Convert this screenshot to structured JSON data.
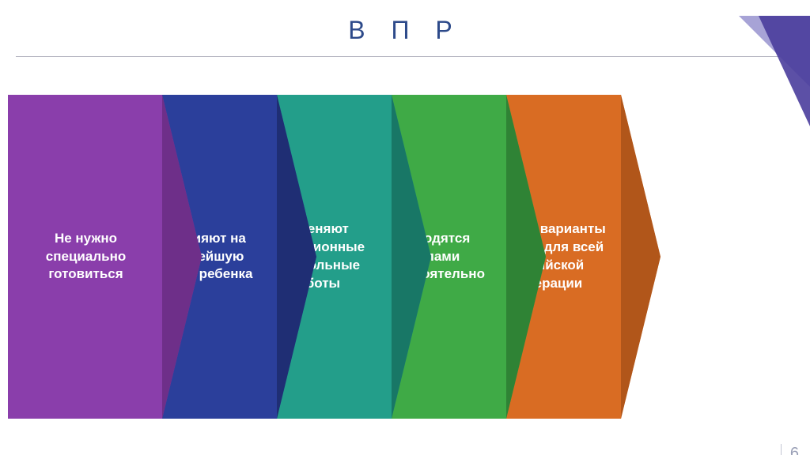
{
  "title": "В П Р",
  "title_color": "#2d4a8a",
  "title_fontsize": 32,
  "underline_color": "#b8b8c4",
  "background_color": "#ffffff",
  "page_number": "6",
  "page_number_color": "#9aa0b7",
  "corner_triangle": {
    "top_color": "#a7a3d6",
    "bottom_color": "#4a3d9c"
  },
  "chevron_row": {
    "type": "infographic",
    "item_width": 245,
    "item_height": 410,
    "notch": 50,
    "overlap": 50,
    "left_start": 10,
    "text_color": "#ffffff",
    "text_fontsize": 17,
    "text_fontweight": 700,
    "items": [
      {
        "label": "Не нужно специально готовиться",
        "fill": "#8a3eab",
        "edge": "#6e2f89"
      },
      {
        "label": "Не влияют на дальнейшую судьбу ребенка",
        "fill": "#2b3f9b",
        "edge": "#1f2e74"
      },
      {
        "label": "Заменяют традиционные контрольные работы",
        "fill": "#239e8a",
        "edge": "#187766"
      },
      {
        "label": "Проводятся школами самостоятельно",
        "fill": "#3faa46",
        "edge": "#2f8335"
      },
      {
        "label": "Единые варианты заданий для всей Российской федерации",
        "fill": "#d96c23",
        "edge": "#b1561a"
      }
    ]
  }
}
